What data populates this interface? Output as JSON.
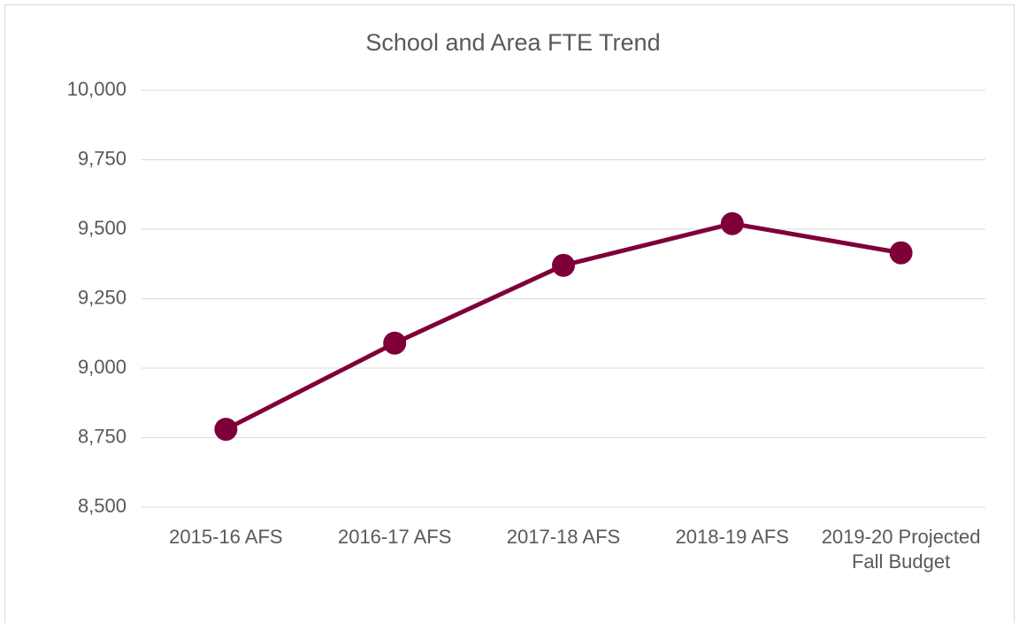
{
  "chart_data": {
    "type": "line",
    "title": "School and Area FTE Trend",
    "categories": [
      "2015-16 AFS",
      "2016-17 AFS",
      "2017-18 AFS",
      "2018-19 AFS",
      "2019-20 Projected Fall Budget"
    ],
    "series": [
      {
        "name": "FTE",
        "color": "#7f0038",
        "values": [
          8780,
          9090,
          9370,
          9520,
          9415
        ]
      }
    ],
    "ylim": [
      8500,
      10000
    ],
    "yticks": [
      {
        "value": 8500,
        "label": "8,500"
      },
      {
        "value": 8750,
        "label": "8,750"
      },
      {
        "value": 9000,
        "label": "9,000"
      },
      {
        "value": 9250,
        "label": "9,250"
      },
      {
        "value": 9500,
        "label": "9,500"
      },
      {
        "value": 9750,
        "label": "9,750"
      },
      {
        "value": 10000,
        "label": "10,000"
      }
    ],
    "grid": true
  }
}
